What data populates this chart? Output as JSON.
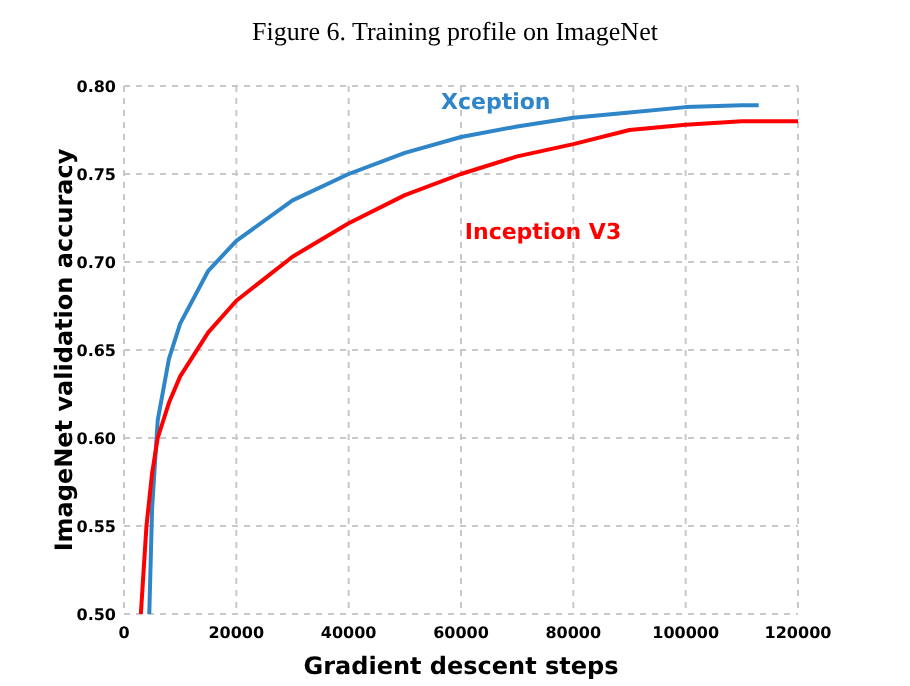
{
  "chart_data": {
    "type": "line",
    "title": "Figure 6. Training profile on ImageNet",
    "xlabel": "Gradient descent steps",
    "ylabel": "ImageNet validation accuracy",
    "xlim": [
      0,
      120000
    ],
    "xticks": [
      0,
      20000,
      40000,
      60000,
      80000,
      100000,
      120000
    ],
    "ylim": [
      0.5,
      0.8
    ],
    "yticks": [
      {
        "value": 0.5,
        "label": "0.50"
      },
      {
        "value": 0.55,
        "label": "0.55"
      },
      {
        "value": 0.6,
        "label": "0.60"
      },
      {
        "value": 0.65,
        "label": "0.65"
      },
      {
        "value": 0.7,
        "label": "0.70"
      },
      {
        "value": 0.75,
        "label": "0.75"
      },
      {
        "value": 0.8,
        "label": "0.80"
      }
    ],
    "grid": true,
    "line_style": "solid",
    "marker": "none",
    "series": [
      {
        "name": "Xception",
        "color": "#2e86c8",
        "x": [
          4500,
          5000,
          6000,
          8000,
          10000,
          15000,
          20000,
          30000,
          40000,
          50000,
          60000,
          70000,
          80000,
          90000,
          100000,
          110000,
          113000
        ],
        "values": [
          0.5,
          0.56,
          0.61,
          0.645,
          0.665,
          0.695,
          0.712,
          0.735,
          0.75,
          0.762,
          0.771,
          0.777,
          0.782,
          0.785,
          0.788,
          0.789,
          0.789
        ]
      },
      {
        "name": "Inception V3",
        "color": "#ff0000",
        "x": [
          3000,
          4000,
          5000,
          6000,
          8000,
          10000,
          15000,
          20000,
          30000,
          40000,
          50000,
          60000,
          70000,
          80000,
          90000,
          100000,
          110000,
          120000
        ],
        "values": [
          0.5,
          0.55,
          0.58,
          0.6,
          0.62,
          0.635,
          0.66,
          0.678,
          0.703,
          0.722,
          0.738,
          0.75,
          0.76,
          0.767,
          0.775,
          0.778,
          0.78,
          0.78
        ]
      }
    ]
  }
}
